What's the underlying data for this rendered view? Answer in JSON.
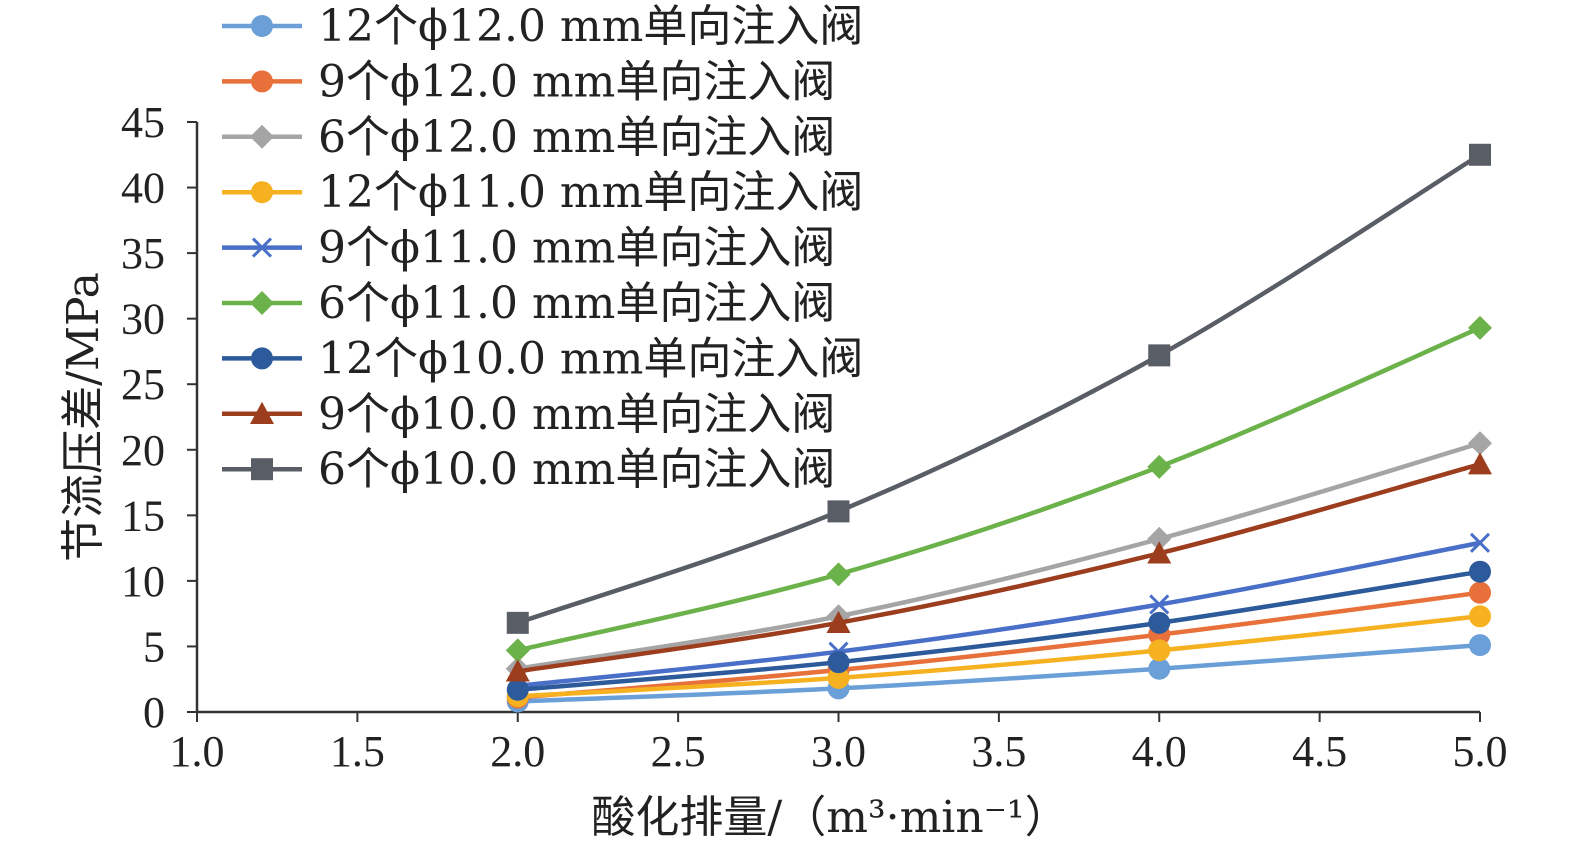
{
  "chart_data": {
    "type": "line",
    "title": "",
    "xlabel": "酸化排量/（m³·min⁻¹）",
    "ylabel": "节流压差/MPa",
    "xlim": [
      1.0,
      5.0
    ],
    "ylim": [
      0,
      45
    ],
    "x_ticks": [
      "1.0",
      "1.5",
      "2.0",
      "2.5",
      "3.0",
      "3.5",
      "4.0",
      "4.5",
      "5.0"
    ],
    "y_ticks": [
      "0",
      "5",
      "10",
      "15",
      "20",
      "25",
      "30",
      "35",
      "40",
      "45"
    ],
    "grid": false,
    "legend_position": "top-left",
    "x": [
      2.0,
      3.0,
      4.0,
      5.0
    ],
    "series": [
      {
        "name": "12个ϕ12.0 mm单向注入阀",
        "color": "#6a9fd8",
        "marker": "circle",
        "values": [
          0.8,
          1.8,
          3.3,
          5.1
        ]
      },
      {
        "name": "9个ϕ12.0 mm单向注入阀",
        "color": "#e8703a",
        "marker": "circle",
        "values": [
          1.1,
          3.2,
          5.9,
          9.1
        ]
      },
      {
        "name": "6个ϕ12.0 mm单向注入阀",
        "color": "#a5a5a5",
        "marker": "diamond",
        "values": [
          3.3,
          7.3,
          13.2,
          20.5
        ]
      },
      {
        "name": "12个ϕ11.0 mm单向注入阀",
        "color": "#f5b120",
        "marker": "circle",
        "values": [
          1.2,
          2.6,
          4.7,
          7.3
        ]
      },
      {
        "name": "9个ϕ11.0 mm单向注入阀",
        "color": "#4a6fc8",
        "marker": "x",
        "values": [
          2.0,
          4.6,
          8.2,
          12.9
        ]
      },
      {
        "name": "6个ϕ11.0 mm单向注入阀",
        "color": "#6cb24a",
        "marker": "diamond",
        "values": [
          4.7,
          10.5,
          18.7,
          29.3
        ]
      },
      {
        "name": "12个ϕ10.0 mm单向注入阀",
        "color": "#2d5a9a",
        "marker": "circle",
        "values": [
          1.7,
          3.8,
          6.8,
          10.7
        ]
      },
      {
        "name": "9个ϕ10.0 mm单向注入阀",
        "color": "#9c3d1e",
        "marker": "triangle",
        "values": [
          3.1,
          6.8,
          12.1,
          18.9
        ]
      },
      {
        "name": "6个ϕ10.0 mm单向注入阀",
        "color": "#595e66",
        "marker": "square",
        "values": [
          6.8,
          15.3,
          27.2,
          42.5
        ]
      }
    ]
  }
}
